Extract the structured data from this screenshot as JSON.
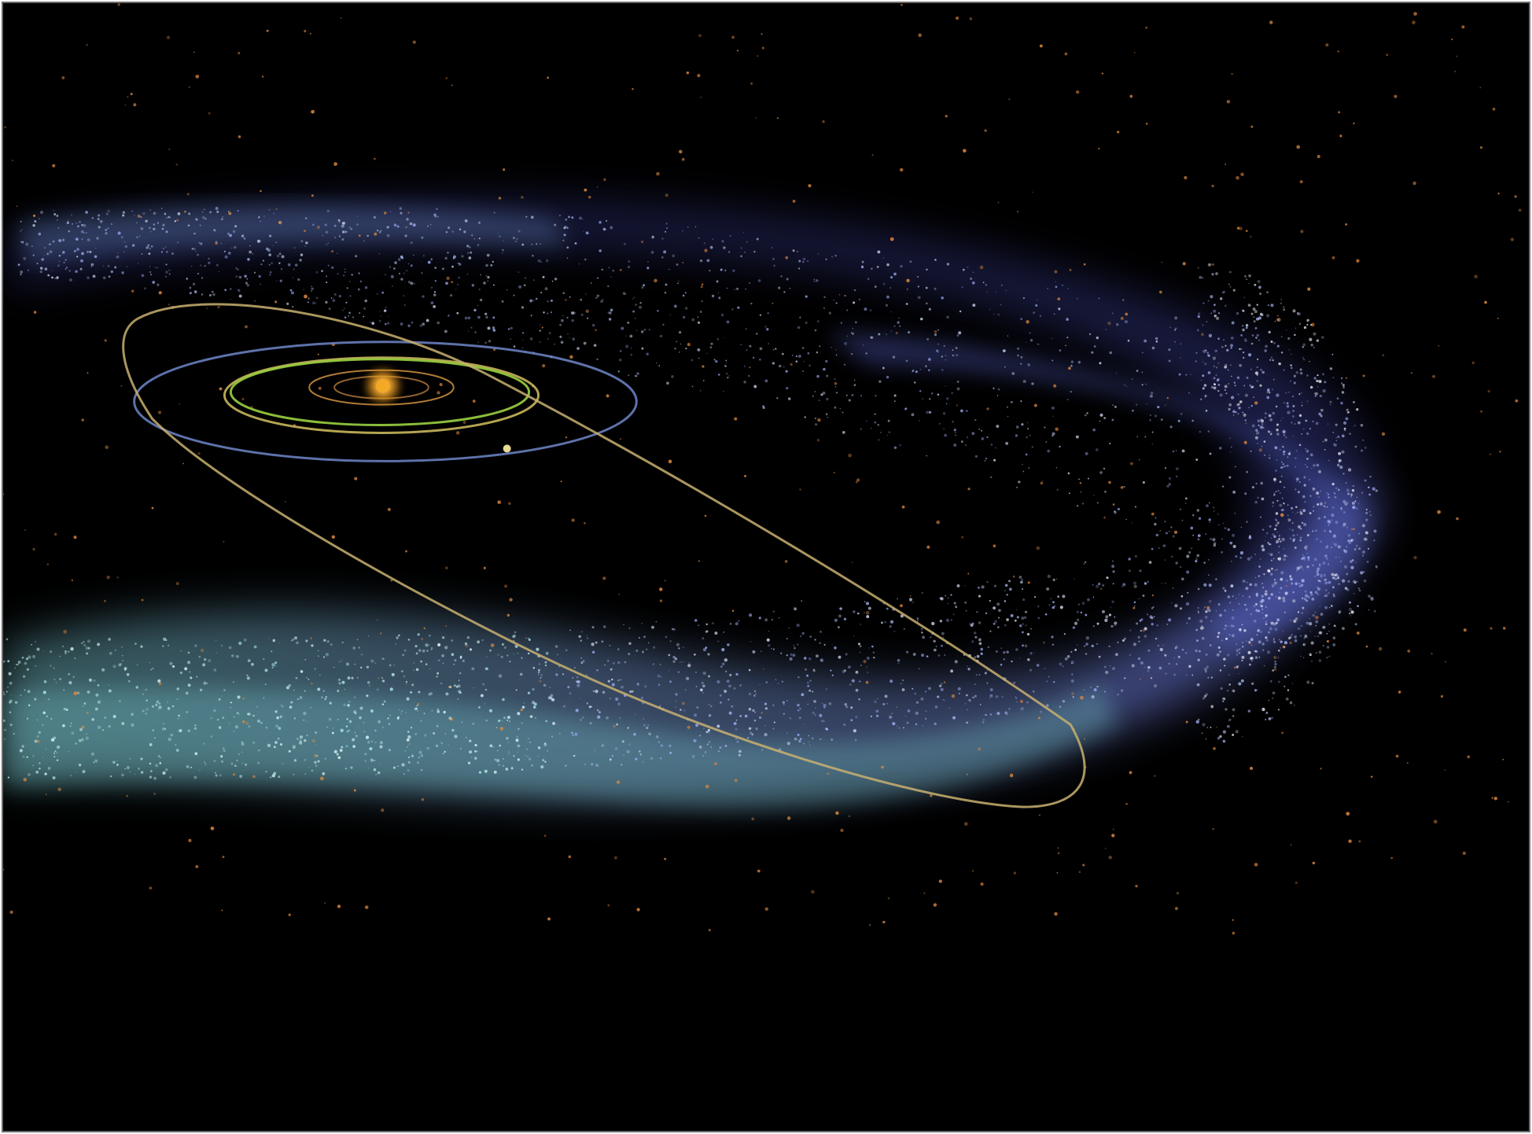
{
  "image": {
    "subject": "solar-system-orbits-with-kuiper-belt-and-scattered-disk",
    "colors": {
      "background": "#000000",
      "frame_border": "#6b6b6b",
      "sun": "#f0a020",
      "inner_orbit": "#d09040",
      "green_orbit": "#9ad040",
      "yellow_orbit": "#d4c060",
      "blue_orbit": "#6f86c8",
      "eccentric_orbit": "#c8b070",
      "belt_blue": "#6a72d0",
      "belt_cyan": "#7ac8d0",
      "star_orange": "#e08a40"
    }
  }
}
